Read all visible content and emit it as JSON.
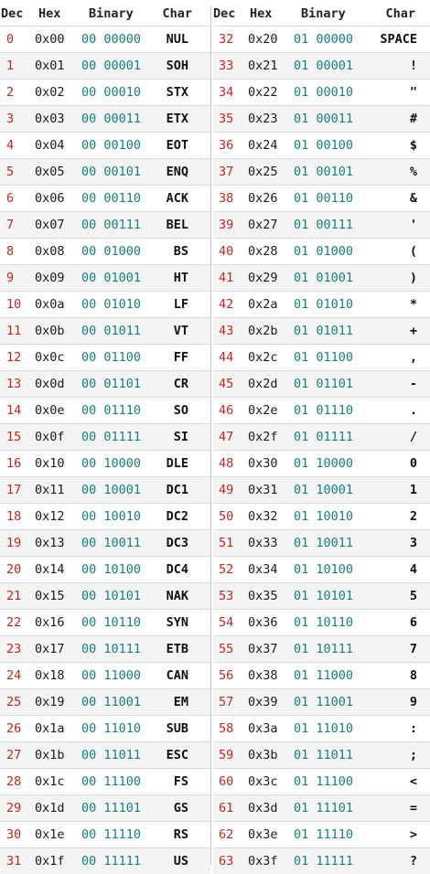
{
  "headers": {
    "dec": "Dec",
    "hex": "Hex",
    "binary": "Binary",
    "char": "Char"
  },
  "colors": {
    "dec": "#c0281e",
    "hex": "#1a1a1a",
    "binary": "#17807e",
    "char": "#111111",
    "row_alt_bg": "#f4f4f4",
    "rule": "#dcdcdc"
  },
  "left_rows": [
    {
      "dec": "0",
      "hex": "0x00",
      "bin": "00 00000",
      "char": "NUL"
    },
    {
      "dec": "1",
      "hex": "0x01",
      "bin": "00 00001",
      "char": "SOH"
    },
    {
      "dec": "2",
      "hex": "0x02",
      "bin": "00 00010",
      "char": "STX"
    },
    {
      "dec": "3",
      "hex": "0x03",
      "bin": "00 00011",
      "char": "ETX"
    },
    {
      "dec": "4",
      "hex": "0x04",
      "bin": "00 00100",
      "char": "EOT"
    },
    {
      "dec": "5",
      "hex": "0x05",
      "bin": "00 00101",
      "char": "ENQ"
    },
    {
      "dec": "6",
      "hex": "0x06",
      "bin": "00 00110",
      "char": "ACK"
    },
    {
      "dec": "7",
      "hex": "0x07",
      "bin": "00 00111",
      "char": "BEL"
    },
    {
      "dec": "8",
      "hex": "0x08",
      "bin": "00 01000",
      "char": "BS"
    },
    {
      "dec": "9",
      "hex": "0x09",
      "bin": "00 01001",
      "char": "HT"
    },
    {
      "dec": "10",
      "hex": "0x0a",
      "bin": "00 01010",
      "char": "LF"
    },
    {
      "dec": "11",
      "hex": "0x0b",
      "bin": "00 01011",
      "char": "VT"
    },
    {
      "dec": "12",
      "hex": "0x0c",
      "bin": "00 01100",
      "char": "FF"
    },
    {
      "dec": "13",
      "hex": "0x0d",
      "bin": "00 01101",
      "char": "CR"
    },
    {
      "dec": "14",
      "hex": "0x0e",
      "bin": "00 01110",
      "char": "SO"
    },
    {
      "dec": "15",
      "hex": "0x0f",
      "bin": "00 01111",
      "char": "SI"
    },
    {
      "dec": "16",
      "hex": "0x10",
      "bin": "00 10000",
      "char": "DLE"
    },
    {
      "dec": "17",
      "hex": "0x11",
      "bin": "00 10001",
      "char": "DC1"
    },
    {
      "dec": "18",
      "hex": "0x12",
      "bin": "00 10010",
      "char": "DC2"
    },
    {
      "dec": "19",
      "hex": "0x13",
      "bin": "00 10011",
      "char": "DC3"
    },
    {
      "dec": "20",
      "hex": "0x14",
      "bin": "00 10100",
      "char": "DC4"
    },
    {
      "dec": "21",
      "hex": "0x15",
      "bin": "00 10101",
      "char": "NAK"
    },
    {
      "dec": "22",
      "hex": "0x16",
      "bin": "00 10110",
      "char": "SYN"
    },
    {
      "dec": "23",
      "hex": "0x17",
      "bin": "00 10111",
      "char": "ETB"
    },
    {
      "dec": "24",
      "hex": "0x18",
      "bin": "00 11000",
      "char": "CAN"
    },
    {
      "dec": "25",
      "hex": "0x19",
      "bin": "00 11001",
      "char": "EM"
    },
    {
      "dec": "26",
      "hex": "0x1a",
      "bin": "00 11010",
      "char": "SUB"
    },
    {
      "dec": "27",
      "hex": "0x1b",
      "bin": "00 11011",
      "char": "ESC"
    },
    {
      "dec": "28",
      "hex": "0x1c",
      "bin": "00 11100",
      "char": "FS"
    },
    {
      "dec": "29",
      "hex": "0x1d",
      "bin": "00 11101",
      "char": "GS"
    },
    {
      "dec": "30",
      "hex": "0x1e",
      "bin": "00 11110",
      "char": "RS"
    },
    {
      "dec": "31",
      "hex": "0x1f",
      "bin": "00 11111",
      "char": "US"
    }
  ],
  "right_rows": [
    {
      "dec": "32",
      "hex": "0x20",
      "bin": "01 00000",
      "char": "SPACE"
    },
    {
      "dec": "33",
      "hex": "0x21",
      "bin": "01 00001",
      "char": "!"
    },
    {
      "dec": "34",
      "hex": "0x22",
      "bin": "01 00010",
      "char": "\""
    },
    {
      "dec": "35",
      "hex": "0x23",
      "bin": "01 00011",
      "char": "#"
    },
    {
      "dec": "36",
      "hex": "0x24",
      "bin": "01 00100",
      "char": "$"
    },
    {
      "dec": "37",
      "hex": "0x25",
      "bin": "01 00101",
      "char": "%"
    },
    {
      "dec": "38",
      "hex": "0x26",
      "bin": "01 00110",
      "char": "&"
    },
    {
      "dec": "39",
      "hex": "0x27",
      "bin": "01 00111",
      "char": "'"
    },
    {
      "dec": "40",
      "hex": "0x28",
      "bin": "01 01000",
      "char": "("
    },
    {
      "dec": "41",
      "hex": "0x29",
      "bin": "01 01001",
      "char": ")"
    },
    {
      "dec": "42",
      "hex": "0x2a",
      "bin": "01 01010",
      "char": "*"
    },
    {
      "dec": "43",
      "hex": "0x2b",
      "bin": "01 01011",
      "char": "+"
    },
    {
      "dec": "44",
      "hex": "0x2c",
      "bin": "01 01100",
      "char": ","
    },
    {
      "dec": "45",
      "hex": "0x2d",
      "bin": "01 01101",
      "char": "-"
    },
    {
      "dec": "46",
      "hex": "0x2e",
      "bin": "01 01110",
      "char": "."
    },
    {
      "dec": "47",
      "hex": "0x2f",
      "bin": "01 01111",
      "char": "/"
    },
    {
      "dec": "48",
      "hex": "0x30",
      "bin": "01 10000",
      "char": "0"
    },
    {
      "dec": "49",
      "hex": "0x31",
      "bin": "01 10001",
      "char": "1"
    },
    {
      "dec": "50",
      "hex": "0x32",
      "bin": "01 10010",
      "char": "2"
    },
    {
      "dec": "51",
      "hex": "0x33",
      "bin": "01 10011",
      "char": "3"
    },
    {
      "dec": "52",
      "hex": "0x34",
      "bin": "01 10100",
      "char": "4"
    },
    {
      "dec": "53",
      "hex": "0x35",
      "bin": "01 10101",
      "char": "5"
    },
    {
      "dec": "54",
      "hex": "0x36",
      "bin": "01 10110",
      "char": "6"
    },
    {
      "dec": "55",
      "hex": "0x37",
      "bin": "01 10111",
      "char": "7"
    },
    {
      "dec": "56",
      "hex": "0x38",
      "bin": "01 11000",
      "char": "8"
    },
    {
      "dec": "57",
      "hex": "0x39",
      "bin": "01 11001",
      "char": "9"
    },
    {
      "dec": "58",
      "hex": "0x3a",
      "bin": "01 11010",
      "char": ":"
    },
    {
      "dec": "59",
      "hex": "0x3b",
      "bin": "01 11011",
      "char": ";"
    },
    {
      "dec": "60",
      "hex": "0x3c",
      "bin": "01 11100",
      "char": "<"
    },
    {
      "dec": "61",
      "hex": "0x3d",
      "bin": "01 11101",
      "char": "="
    },
    {
      "dec": "62",
      "hex": "0x3e",
      "bin": "01 11110",
      "char": ">"
    },
    {
      "dec": "63",
      "hex": "0x3f",
      "bin": "01 11111",
      "char": "?"
    }
  ]
}
